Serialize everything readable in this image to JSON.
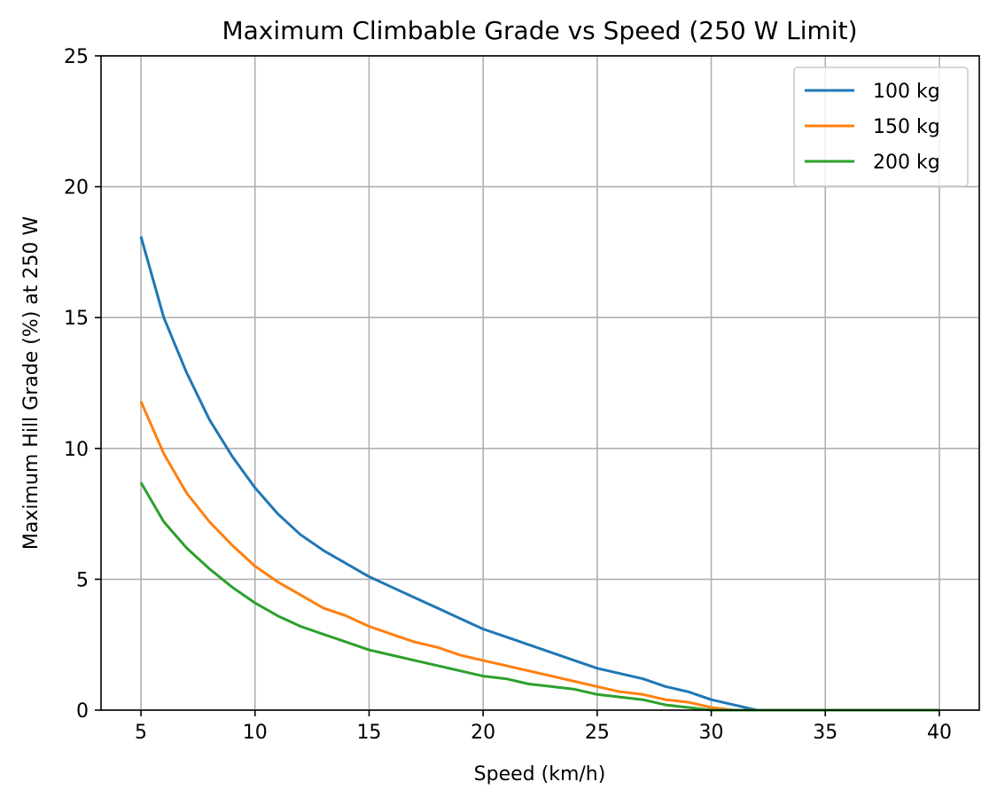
{
  "chart_data": {
    "type": "line",
    "title": "Maximum Climbable Grade vs Speed (250 W Limit)",
    "xlabel": "Speed (km/h)",
    "ylabel": "Maximum Hill Grade (%) at 250 W",
    "xlim": [
      3.25,
      41.75
    ],
    "ylim": [
      0,
      25
    ],
    "xticks": [
      5,
      10,
      15,
      20,
      25,
      30,
      35,
      40
    ],
    "yticks": [
      0,
      5,
      10,
      15,
      20,
      25
    ],
    "grid": true,
    "legend_position": "top-right",
    "x": [
      5,
      6,
      7,
      8,
      9,
      10,
      11,
      12,
      13,
      14,
      15,
      16,
      17,
      18,
      19,
      20,
      21,
      22,
      23,
      24,
      25,
      26,
      27,
      28,
      29,
      30,
      31,
      32,
      33,
      34,
      35,
      36,
      37,
      38,
      39,
      40
    ],
    "series": [
      {
        "name": "100 kg",
        "color": "#1f77b4",
        "values": [
          18.1,
          15.0,
          12.9,
          11.1,
          9.7,
          8.5,
          7.5,
          6.7,
          6.1,
          5.6,
          5.1,
          4.7,
          4.3,
          3.9,
          3.5,
          3.1,
          2.8,
          2.5,
          2.2,
          1.9,
          1.6,
          1.4,
          1.2,
          0.9,
          0.7,
          0.4,
          0.2,
          0.0,
          0.0,
          0.0,
          0.0,
          0.0,
          0.0,
          0.0,
          0.0,
          0.0
        ]
      },
      {
        "name": "150 kg",
        "color": "#ff7f0e",
        "values": [
          11.8,
          9.8,
          8.3,
          7.2,
          6.3,
          5.5,
          4.9,
          4.4,
          3.9,
          3.6,
          3.2,
          2.9,
          2.6,
          2.4,
          2.1,
          1.9,
          1.7,
          1.5,
          1.3,
          1.1,
          0.9,
          0.7,
          0.6,
          0.4,
          0.3,
          0.1,
          0.0,
          0.0,
          0.0,
          0.0,
          0.0,
          0.0,
          0.0,
          0.0,
          0.0,
          0.0
        ]
      },
      {
        "name": "200 kg",
        "color": "#2ca02c",
        "values": [
          8.7,
          7.2,
          6.2,
          5.4,
          4.7,
          4.1,
          3.6,
          3.2,
          2.9,
          2.6,
          2.3,
          2.1,
          1.9,
          1.7,
          1.5,
          1.3,
          1.2,
          1.0,
          0.9,
          0.8,
          0.6,
          0.5,
          0.4,
          0.2,
          0.1,
          0.0,
          0.0,
          0.0,
          0.0,
          0.0,
          0.0,
          0.0,
          0.0,
          0.0,
          0.0,
          0.0
        ]
      }
    ]
  }
}
